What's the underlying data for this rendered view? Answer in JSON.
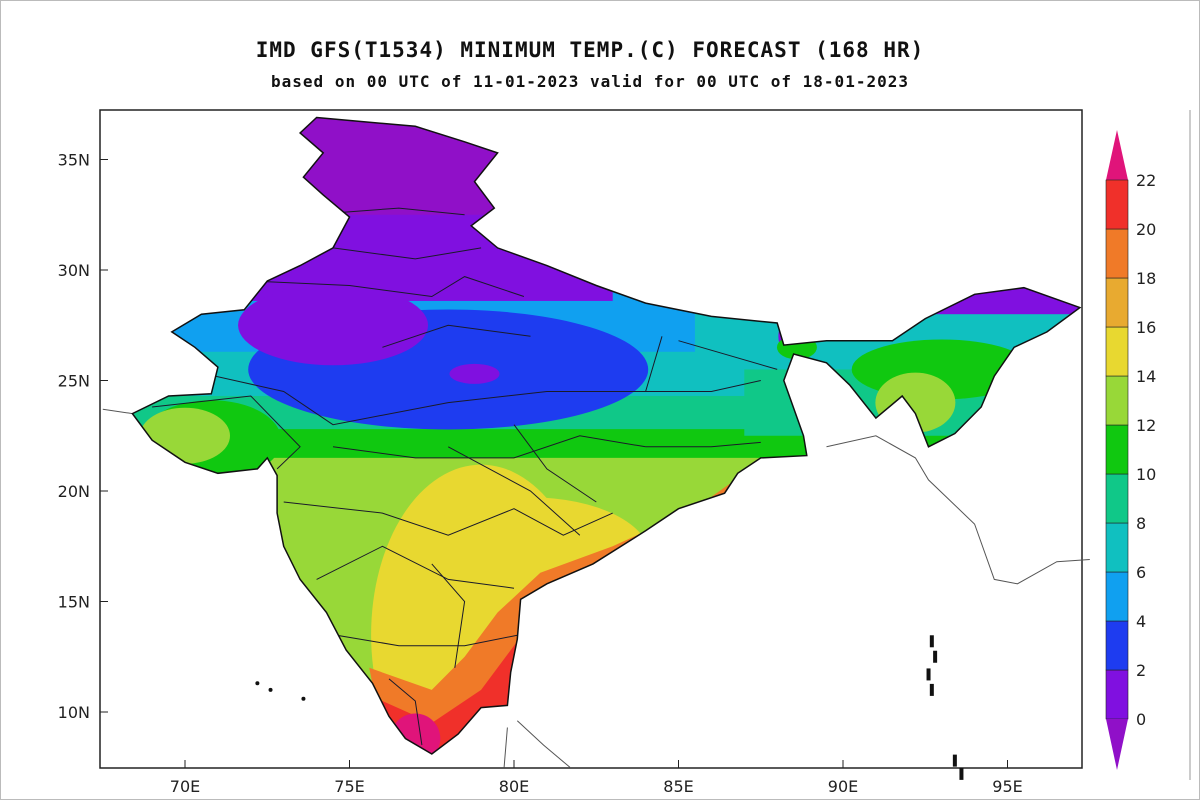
{
  "title": "IMD GFS(T1534) MINIMUM TEMP.(C) FORECAST (168 HR)",
  "subtitle": "based on 00 UTC of 11-01-2023 valid for 00 UTC of 18-01-2023",
  "map": {
    "region": "India",
    "variable": "Minimum temperature (C)",
    "lat_ticks": [
      "35N",
      "30N",
      "25N",
      "20N",
      "15N",
      "10N"
    ],
    "lat_values": [
      35,
      30,
      25,
      20,
      15,
      10
    ],
    "lon_ticks": [
      "70E",
      "75E",
      "80E",
      "85E",
      "90E",
      "95E"
    ],
    "lon_values": [
      70,
      75,
      80,
      85,
      90,
      95
    ],
    "lon_range": [
      67.5,
      97.5
    ],
    "lat_range": [
      7.5,
      37.5
    ]
  },
  "colorbar": {
    "labels": [
      "0",
      "2",
      "4",
      "6",
      "8",
      "10",
      "12",
      "14",
      "16",
      "18",
      "20",
      "22"
    ],
    "levels": [
      0,
      2,
      4,
      6,
      8,
      10,
      12,
      14,
      16,
      18,
      20,
      22
    ],
    "colors": [
      "#9010c8",
      "#8010e0",
      "#1e3cf0",
      "#10a0f0",
      "#10c0c0",
      "#10c888",
      "#10c810",
      "#98d838",
      "#e8d830",
      "#e8aa30",
      "#f07a28",
      "#f0302a",
      "#e0147a"
    ]
  }
}
